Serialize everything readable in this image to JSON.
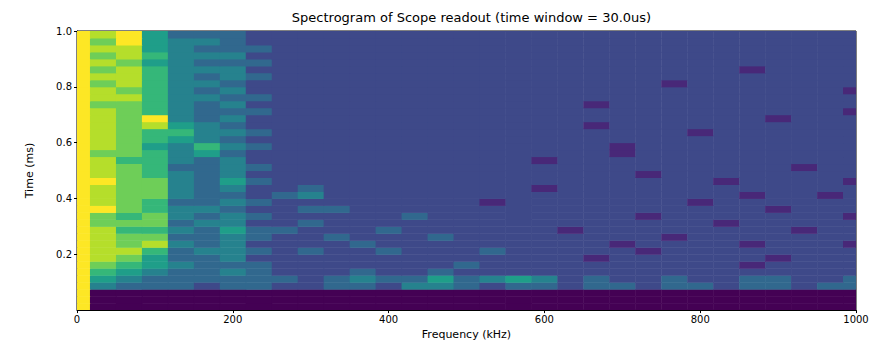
{
  "chart_data": {
    "type": "heatmap",
    "title": "Spectrogram of Scope readout (time window = 30.0us)",
    "x_label": "Frequency (kHz)",
    "y_label": "Time (ms)",
    "x": [
      0,
      33.3,
      66.7,
      100,
      133.3,
      166.7,
      200,
      233.3,
      266.7,
      300,
      333.3,
      366.7,
      400,
      433.3,
      466.7,
      500,
      533.3,
      566.7,
      600,
      633.3,
      666.7,
      700,
      733.3,
      766.7,
      800,
      833.3,
      866.7,
      900,
      933.3,
      966.7,
      1000
    ],
    "y": [
      0.0125,
      0.0375,
      0.0625,
      0.0875,
      0.1125,
      0.1375,
      0.1625,
      0.1875,
      0.2125,
      0.2375,
      0.2625,
      0.2875,
      0.3125,
      0.3375,
      0.3625,
      0.3875,
      0.4125,
      0.4375,
      0.4625,
      0.4875,
      0.5125,
      0.5375,
      0.5625,
      0.5875,
      0.6125,
      0.6375,
      0.6625,
      0.6875,
      0.7125,
      0.7375,
      0.7625,
      0.7875,
      0.8125,
      0.8375,
      0.8625,
      0.8875,
      0.9125,
      0.9375,
      0.9625,
      0.9875
    ],
    "values": [
      [
        9,
        0,
        0,
        0,
        0,
        0,
        0,
        0,
        0,
        0,
        0,
        0,
        0,
        0,
        0,
        0,
        0,
        0,
        0,
        0,
        0,
        0,
        0,
        0,
        0,
        0,
        0,
        0,
        0,
        0,
        0
      ],
      [
        9,
        0,
        0,
        0,
        0,
        0,
        0,
        0,
        0,
        0,
        0,
        0,
        0,
        0,
        0,
        0,
        0,
        0,
        0,
        0,
        0,
        0,
        0,
        0,
        0,
        0,
        0,
        0,
        0,
        0,
        0
      ],
      [
        9,
        0,
        0,
        0,
        0,
        0,
        0,
        0,
        0,
        0,
        0,
        0,
        0,
        0,
        0,
        0,
        0,
        0,
        0,
        0,
        0,
        0,
        0,
        0,
        0,
        0,
        0,
        0,
        0,
        0,
        0
      ],
      [
        9,
        4,
        3,
        3,
        3,
        2,
        3,
        3,
        2,
        2,
        3,
        3,
        2,
        4,
        4,
        3,
        2,
        3,
        3,
        2,
        3,
        3,
        2,
        3,
        3,
        2,
        3,
        3,
        2,
        3,
        3
      ],
      [
        9,
        5,
        4,
        3,
        3,
        3,
        3,
        3,
        3,
        2,
        3,
        4,
        3,
        3,
        5,
        3,
        4,
        5,
        4,
        2,
        3,
        2,
        2,
        3,
        2,
        2,
        3,
        3,
        2,
        2,
        3
      ],
      [
        9,
        6,
        5,
        4,
        3,
        3,
        4,
        3,
        2,
        2,
        2,
        3,
        2,
        2,
        3,
        2,
        2,
        2,
        2,
        2,
        2,
        2,
        2,
        2,
        2,
        2,
        2,
        2,
        2,
        2,
        2
      ],
      [
        9,
        7,
        6,
        5,
        4,
        3,
        3,
        3,
        2,
        2,
        2,
        2,
        2,
        2,
        2,
        3,
        2,
        2,
        2,
        2,
        2,
        2,
        2,
        2,
        2,
        2,
        1,
        2,
        2,
        2,
        2
      ],
      [
        9,
        8,
        7,
        5,
        3,
        3,
        4,
        2,
        2,
        2,
        2,
        2,
        2,
        2,
        2,
        2,
        2,
        2,
        2,
        2,
        1,
        2,
        2,
        2,
        2,
        2,
        2,
        1,
        2,
        2,
        2
      ],
      [
        9,
        8,
        8,
        6,
        3,
        4,
        4,
        3,
        2,
        3,
        2,
        2,
        3,
        2,
        2,
        2,
        3,
        2,
        2,
        2,
        2,
        2,
        1,
        2,
        2,
        2,
        2,
        2,
        2,
        2,
        2
      ],
      [
        9,
        8,
        7,
        8,
        4,
        3,
        4,
        2,
        2,
        2,
        2,
        3,
        2,
        2,
        2,
        2,
        2,
        2,
        2,
        2,
        2,
        1,
        2,
        2,
        2,
        2,
        1,
        2,
        2,
        2,
        1
      ],
      [
        9,
        8,
        7,
        7,
        3,
        3,
        4,
        3,
        2,
        2,
        3,
        2,
        2,
        2,
        3,
        2,
        2,
        2,
        2,
        2,
        2,
        2,
        2,
        1,
        2,
        2,
        2,
        2,
        2,
        2,
        2
      ],
      [
        9,
        8,
        6,
        6,
        4,
        3,
        5,
        3,
        3,
        2,
        2,
        2,
        3,
        2,
        2,
        2,
        2,
        2,
        2,
        1,
        2,
        2,
        2,
        2,
        2,
        2,
        2,
        2,
        1,
        2,
        2
      ],
      [
        9,
        7,
        7,
        7,
        3,
        4,
        4,
        2,
        2,
        3,
        2,
        2,
        2,
        2,
        2,
        2,
        2,
        2,
        2,
        2,
        2,
        2,
        2,
        2,
        2,
        1,
        2,
        2,
        2,
        2,
        2
      ],
      [
        9,
        7,
        6,
        7,
        4,
        3,
        4,
        3,
        2,
        2,
        2,
        2,
        2,
        3,
        2,
        2,
        2,
        2,
        2,
        2,
        2,
        2,
        1,
        2,
        2,
        2,
        2,
        2,
        2,
        2,
        1
      ],
      [
        9,
        9,
        7,
        6,
        4,
        4,
        3,
        2,
        2,
        3,
        3,
        2,
        2,
        2,
        2,
        2,
        2,
        2,
        2,
        2,
        2,
        2,
        2,
        2,
        2,
        2,
        2,
        1,
        2,
        2,
        2
      ],
      [
        9,
        8,
        7,
        6,
        3,
        3,
        4,
        3,
        2,
        2,
        2,
        2,
        2,
        2,
        2,
        2,
        1,
        2,
        2,
        2,
        2,
        2,
        2,
        2,
        1,
        2,
        2,
        2,
        2,
        2,
        2
      ],
      [
        9,
        8,
        7,
        7,
        4,
        3,
        3,
        2,
        3,
        4,
        2,
        2,
        2,
        2,
        2,
        2,
        2,
        2,
        2,
        2,
        2,
        2,
        2,
        2,
        2,
        2,
        1,
        2,
        2,
        1,
        2
      ],
      [
        9,
        8,
        7,
        7,
        4,
        3,
        4,
        2,
        2,
        3,
        2,
        2,
        2,
        2,
        2,
        2,
        2,
        2,
        1,
        2,
        2,
        2,
        2,
        2,
        2,
        2,
        2,
        2,
        2,
        2,
        2
      ],
      [
        9,
        9,
        7,
        7,
        4,
        3,
        5,
        3,
        2,
        2,
        2,
        2,
        2,
        2,
        2,
        2,
        2,
        2,
        2,
        2,
        2,
        2,
        2,
        2,
        2,
        1,
        2,
        2,
        2,
        2,
        1
      ],
      [
        9,
        8,
        7,
        6,
        4,
        3,
        4,
        2,
        2,
        2,
        2,
        2,
        2,
        2,
        2,
        2,
        2,
        2,
        2,
        2,
        2,
        2,
        1,
        2,
        2,
        2,
        2,
        2,
        2,
        2,
        2
      ],
      [
        9,
        8,
        7,
        6,
        3,
        3,
        4,
        3,
        2,
        2,
        2,
        2,
        2,
        2,
        2,
        2,
        2,
        2,
        2,
        2,
        2,
        2,
        2,
        2,
        2,
        2,
        2,
        2,
        1,
        2,
        2
      ],
      [
        9,
        8,
        6,
        6,
        4,
        3,
        4,
        2,
        2,
        2,
        2,
        2,
        2,
        2,
        2,
        2,
        2,
        2,
        1,
        2,
        2,
        2,
        2,
        2,
        2,
        2,
        2,
        2,
        2,
        2,
        2
      ],
      [
        9,
        7,
        7,
        6,
        4,
        5,
        3,
        2,
        2,
        2,
        2,
        2,
        2,
        2,
        2,
        2,
        2,
        2,
        2,
        2,
        2,
        1,
        2,
        2,
        2,
        2,
        2,
        2,
        2,
        2,
        2
      ],
      [
        9,
        8,
        7,
        5,
        4,
        6,
        4,
        3,
        2,
        2,
        2,
        2,
        2,
        2,
        2,
        2,
        2,
        2,
        2,
        2,
        2,
        1,
        2,
        2,
        2,
        2,
        2,
        2,
        2,
        2,
        2
      ],
      [
        9,
        8,
        7,
        6,
        5,
        4,
        3,
        2,
        2,
        2,
        2,
        2,
        2,
        2,
        2,
        2,
        2,
        2,
        2,
        2,
        2,
        2,
        2,
        2,
        2,
        2,
        2,
        2,
        2,
        2,
        2
      ],
      [
        9,
        8,
        7,
        6,
        6,
        4,
        4,
        3,
        2,
        2,
        2,
        2,
        2,
        2,
        2,
        2,
        2,
        2,
        2,
        2,
        2,
        2,
        2,
        2,
        1,
        2,
        2,
        2,
        2,
        2,
        2
      ],
      [
        9,
        8,
        7,
        8,
        5,
        4,
        3,
        2,
        2,
        2,
        2,
        2,
        2,
        2,
        2,
        2,
        2,
        2,
        2,
        2,
        1,
        2,
        2,
        2,
        2,
        2,
        2,
        2,
        2,
        2,
        2
      ],
      [
        9,
        8,
        7,
        9,
        4,
        3,
        4,
        2,
        2,
        2,
        2,
        2,
        2,
        2,
        2,
        2,
        2,
        2,
        2,
        2,
        2,
        2,
        2,
        2,
        2,
        2,
        2,
        1,
        2,
        2,
        2
      ],
      [
        9,
        8,
        7,
        6,
        4,
        3,
        3,
        3,
        2,
        2,
        2,
        2,
        2,
        2,
        2,
        2,
        2,
        2,
        2,
        2,
        2,
        2,
        2,
        2,
        2,
        2,
        2,
        2,
        2,
        2,
        1
      ],
      [
        9,
        7,
        7,
        6,
        4,
        3,
        4,
        2,
        2,
        2,
        2,
        2,
        2,
        2,
        2,
        2,
        2,
        2,
        2,
        2,
        1,
        2,
        2,
        2,
        2,
        2,
        2,
        2,
        2,
        2,
        2
      ],
      [
        9,
        8,
        8,
        6,
        4,
        4,
        3,
        3,
        2,
        2,
        2,
        2,
        2,
        2,
        2,
        2,
        2,
        2,
        2,
        2,
        2,
        2,
        2,
        2,
        2,
        2,
        2,
        2,
        2,
        2,
        2
      ],
      [
        9,
        8,
        7,
        6,
        4,
        3,
        4,
        2,
        2,
        2,
        2,
        2,
        2,
        2,
        2,
        2,
        2,
        2,
        2,
        2,
        2,
        2,
        2,
        2,
        2,
        2,
        2,
        2,
        2,
        2,
        1
      ],
      [
        9,
        7,
        8,
        6,
        4,
        4,
        3,
        2,
        2,
        2,
        2,
        2,
        2,
        2,
        2,
        2,
        2,
        2,
        2,
        2,
        2,
        2,
        2,
        1,
        2,
        2,
        2,
        2,
        2,
        2,
        2
      ],
      [
        9,
        8,
        8,
        6,
        4,
        3,
        4,
        3,
        2,
        2,
        2,
        2,
        2,
        2,
        2,
        2,
        2,
        2,
        2,
        2,
        2,
        2,
        2,
        2,
        2,
        2,
        2,
        2,
        2,
        2,
        2
      ],
      [
        9,
        7,
        8,
        6,
        4,
        4,
        4,
        2,
        2,
        2,
        2,
        2,
        2,
        2,
        2,
        2,
        2,
        2,
        2,
        2,
        2,
        2,
        2,
        2,
        2,
        2,
        1,
        2,
        2,
        2,
        2
      ],
      [
        9,
        8,
        7,
        5,
        4,
        3,
        3,
        3,
        2,
        2,
        2,
        2,
        2,
        2,
        2,
        2,
        2,
        2,
        2,
        2,
        2,
        2,
        2,
        2,
        2,
        2,
        2,
        2,
        2,
        2,
        2
      ],
      [
        9,
        7,
        8,
        6,
        4,
        4,
        4,
        2,
        2,
        2,
        2,
        2,
        2,
        2,
        2,
        2,
        2,
        2,
        2,
        2,
        2,
        2,
        2,
        2,
        2,
        2,
        2,
        2,
        2,
        2,
        2
      ],
      [
        9,
        8,
        8,
        5,
        4,
        3,
        3,
        3,
        2,
        2,
        2,
        2,
        2,
        2,
        2,
        2,
        2,
        2,
        2,
        2,
        2,
        2,
        2,
        2,
        2,
        2,
        2,
        2,
        2,
        2,
        2
      ],
      [
        9,
        7,
        9,
        5,
        4,
        4,
        3,
        2,
        2,
        2,
        2,
        2,
        2,
        2,
        2,
        2,
        2,
        2,
        2,
        2,
        2,
        2,
        2,
        2,
        2,
        2,
        2,
        2,
        2,
        2,
        2
      ],
      [
        9,
        8,
        9,
        5,
        3,
        3,
        3,
        2,
        2,
        2,
        2,
        2,
        2,
        2,
        2,
        2,
        2,
        2,
        2,
        2,
        2,
        2,
        2,
        2,
        2,
        2,
        2,
        2,
        2,
        2,
        2
      ]
    ],
    "zlim": [
      0,
      9
    ],
    "xlim": [
      0,
      1000
    ],
    "xticks": [
      0,
      200,
      400,
      600,
      800,
      1000
    ],
    "ylim": [
      0,
      1
    ],
    "yticks": [
      0.2,
      0.4,
      0.6,
      0.8,
      {
        "value": 1,
        "label": "1.0"
      }
    ]
  }
}
